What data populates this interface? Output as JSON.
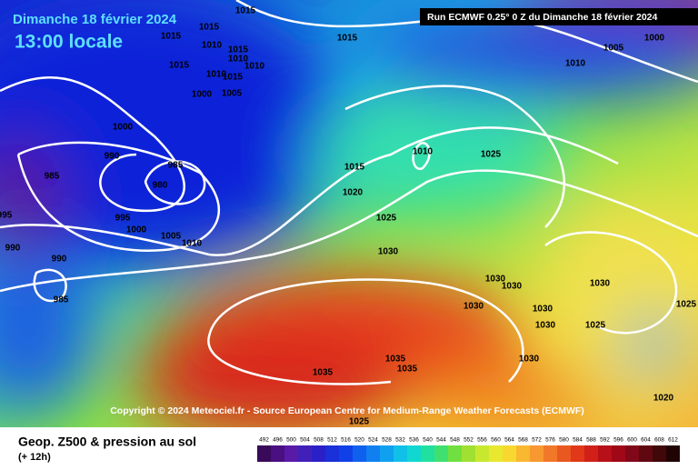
{
  "header": {
    "day": "Dimanche 18 février 2024",
    "time": "13:00 locale",
    "run": "Run ECMWF 0.25° 0 Z du Dimanche 18 février 2024"
  },
  "copyright": "Copyright © 2024 Meteociel.fr - Source European Centre for Medium-Range Weather Forecasts (ECMWF)",
  "isobar_labels": [
    "1015",
    "1015",
    "1015",
    "1010",
    "1015",
    "1015",
    "1010",
    "1010",
    "1015",
    "1010",
    "1005",
    "1000",
    "1010",
    "1015",
    "1005",
    "1000",
    "1000",
    "990",
    "985",
    "980",
    "985",
    "995",
    "1000",
    "1005",
    "1010",
    "990",
    "990",
    "985",
    "995",
    "1010",
    "1015",
    "1020",
    "1025",
    "1025",
    "1030",
    "1030",
    "1030",
    "1030",
    "1030",
    "1030",
    "1030",
    "1025",
    "1025",
    "1030",
    "1035",
    "1035",
    "1035",
    "1020",
    "1025"
  ],
  "footer": {
    "title": "Geop. Z500 & pression au sol",
    "step": "(+ 12h)"
  },
  "legend": [
    492,
    496,
    500,
    504,
    508,
    512,
    516,
    520,
    524,
    528,
    532,
    536,
    540,
    544,
    548,
    552,
    556,
    560,
    564,
    568,
    572,
    576,
    580,
    584,
    588,
    592,
    596,
    600,
    604,
    608,
    612
  ]
}
